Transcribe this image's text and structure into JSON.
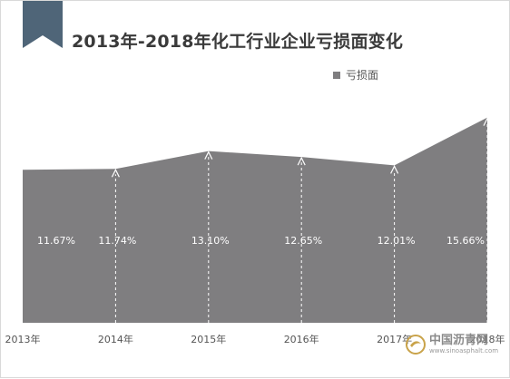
{
  "chart_data": {
    "type": "area",
    "title": "2013年-2018年化工行业企业亏损面变化",
    "categories": [
      "2013年",
      "2014年",
      "2015年",
      "2016年",
      "2017年",
      "2018年"
    ],
    "series": [
      {
        "name": "亏损面",
        "values": [
          11.67,
          11.74,
          13.1,
          12.65,
          12.01,
          15.66
        ],
        "labels": [
          "11.67%",
          "11.74%",
          "13.10%",
          "12.65%",
          "12.01%",
          "15.66%"
        ]
      }
    ],
    "ylim": [
      0,
      17.5
    ],
    "grid": false,
    "legend_position": "top-right",
    "colors": {
      "area": "#7f7e80",
      "ribbon": "#4f6578",
      "label": "#ffffff"
    }
  },
  "watermark": {
    "name": "中国沥青网",
    "url": "www.sinoasphalt.com"
  }
}
